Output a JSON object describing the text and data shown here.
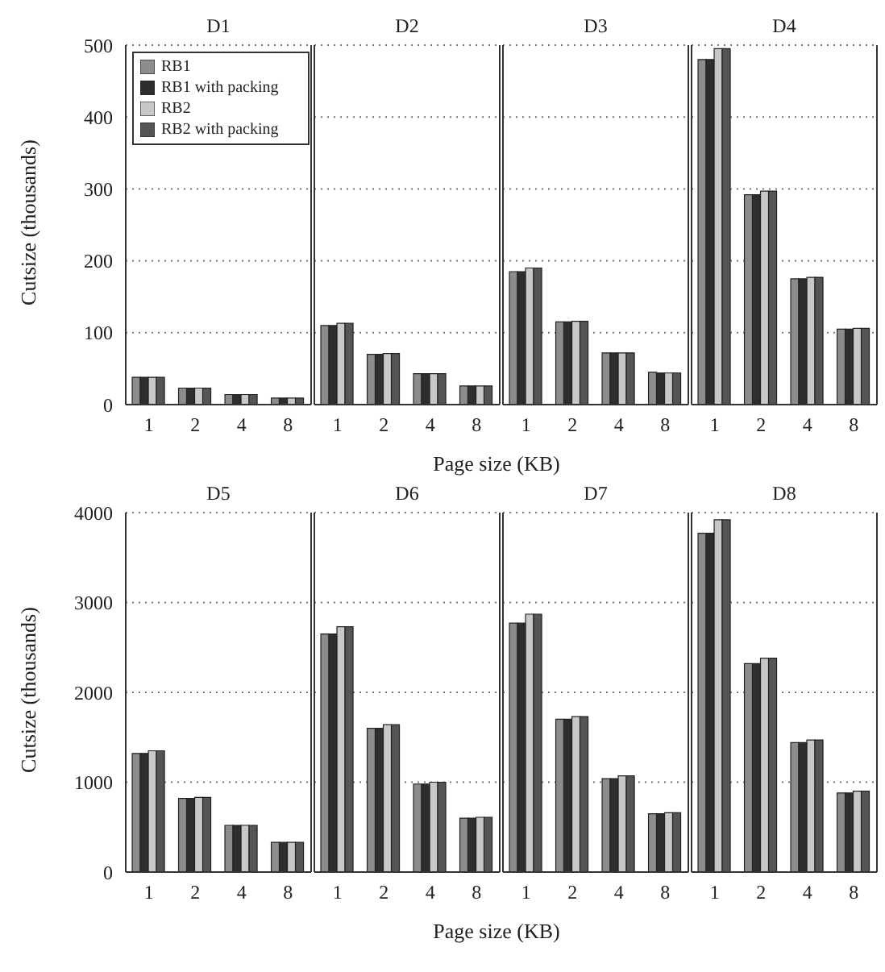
{
  "chart_data": [
    {
      "type": "bar",
      "title": "D1",
      "xlabel": "Page size (KB)",
      "ylabel": "Cutsize (thousands)",
      "categories": [
        "1",
        "2",
        "4",
        "8"
      ],
      "ylim": [
        0,
        500
      ],
      "yticks": [
        0,
        100,
        200,
        300,
        400,
        500
      ],
      "grid": "y",
      "legend": "top left",
      "series": [
        {
          "name": "RB1",
          "color": "#8c8c8c",
          "values": [
            38,
            23,
            14,
            9
          ]
        },
        {
          "name": "RB1 with packing",
          "color": "#2e2e2e",
          "values": [
            38,
            23,
            14,
            9
          ]
        },
        {
          "name": "RB2",
          "color": "#c8c8c8",
          "values": [
            38,
            23,
            14,
            9
          ]
        },
        {
          "name": "RB2 with packing",
          "color": "#555555",
          "values": [
            38,
            23,
            14,
            9
          ]
        }
      ]
    },
    {
      "type": "bar",
      "title": "D2",
      "categories": [
        "1",
        "2",
        "4",
        "8"
      ],
      "ylim": [
        0,
        500
      ],
      "yticks": [
        0,
        100,
        200,
        300,
        400,
        500
      ],
      "grid": "y",
      "tick_labels": "x",
      "series": [
        {
          "color": "#8c8c8c",
          "values": [
            110,
            70,
            43,
            26
          ]
        },
        {
          "color": "#2e2e2e",
          "values": [
            110,
            70,
            43,
            26
          ]
        },
        {
          "color": "#c8c8c8",
          "values": [
            113,
            71,
            43,
            26
          ]
        },
        {
          "color": "#555555",
          "values": [
            113,
            71,
            43,
            26
          ]
        }
      ]
    },
    {
      "type": "bar",
      "title": "D3",
      "categories": [
        "1",
        "2",
        "4",
        "8"
      ],
      "ylim": [
        0,
        500
      ],
      "yticks": [
        0,
        100,
        200,
        300,
        400,
        500
      ],
      "grid": "y",
      "tick_labels": "x",
      "series": [
        {
          "color": "#8c8c8c",
          "values": [
            185,
            115,
            72,
            45
          ]
        },
        {
          "color": "#2e2e2e",
          "values": [
            185,
            115,
            72,
            44
          ]
        },
        {
          "color": "#c8c8c8",
          "values": [
            190,
            116,
            72,
            44
          ]
        },
        {
          "color": "#555555",
          "values": [
            190,
            116,
            72,
            44
          ]
        }
      ]
    },
    {
      "type": "bar",
      "title": "D4",
      "categories": [
        "1",
        "2",
        "4",
        "8"
      ],
      "ylim": [
        0,
        500
      ],
      "yticks": [
        0,
        100,
        200,
        300,
        400,
        500
      ],
      "grid": "y",
      "tick_labels": "x",
      "series": [
        {
          "color": "#8c8c8c",
          "values": [
            480,
            292,
            175,
            105
          ]
        },
        {
          "color": "#2e2e2e",
          "values": [
            480,
            292,
            175,
            105
          ]
        },
        {
          "color": "#c8c8c8",
          "values": [
            495,
            297,
            177,
            106
          ]
        },
        {
          "color": "#555555",
          "values": [
            495,
            297,
            177,
            106
          ]
        }
      ]
    },
    {
      "type": "bar",
      "title": "D5",
      "xlabel": "Page size (KB)",
      "ylabel": "Cutsize (thousands)",
      "categories": [
        "1",
        "2",
        "4",
        "8"
      ],
      "ylim": [
        0,
        4000
      ],
      "yticks": [
        0,
        1000,
        2000,
        3000,
        4000
      ],
      "grid": "y",
      "series": [
        {
          "color": "#8c8c8c",
          "values": [
            1320,
            820,
            520,
            330
          ]
        },
        {
          "color": "#2e2e2e",
          "values": [
            1320,
            820,
            520,
            330
          ]
        },
        {
          "color": "#c8c8c8",
          "values": [
            1350,
            830,
            520,
            330
          ]
        },
        {
          "color": "#555555",
          "values": [
            1350,
            830,
            520,
            330
          ]
        }
      ]
    },
    {
      "type": "bar",
      "title": "D6",
      "categories": [
        "1",
        "2",
        "4",
        "8"
      ],
      "ylim": [
        0,
        4000
      ],
      "yticks": [
        0,
        1000,
        2000,
        3000,
        4000
      ],
      "grid": "y",
      "tick_labels": "x",
      "series": [
        {
          "color": "#8c8c8c",
          "values": [
            2650,
            1600,
            980,
            600
          ]
        },
        {
          "color": "#2e2e2e",
          "values": [
            2650,
            1600,
            980,
            600
          ]
        },
        {
          "color": "#c8c8c8",
          "values": [
            2730,
            1640,
            1000,
            610
          ]
        },
        {
          "color": "#555555",
          "values": [
            2730,
            1640,
            1000,
            610
          ]
        }
      ]
    },
    {
      "type": "bar",
      "title": "D7",
      "categories": [
        "1",
        "2",
        "4",
        "8"
      ],
      "ylim": [
        0,
        4000
      ],
      "yticks": [
        0,
        1000,
        2000,
        3000,
        4000
      ],
      "grid": "y",
      "tick_labels": "x",
      "series": [
        {
          "color": "#8c8c8c",
          "values": [
            2770,
            1700,
            1040,
            650
          ]
        },
        {
          "color": "#2e2e2e",
          "values": [
            2770,
            1700,
            1040,
            650
          ]
        },
        {
          "color": "#c8c8c8",
          "values": [
            2870,
            1730,
            1070,
            660
          ]
        },
        {
          "color": "#555555",
          "values": [
            2870,
            1730,
            1070,
            660
          ]
        }
      ]
    },
    {
      "type": "bar",
      "title": "D8",
      "categories": [
        "1",
        "2",
        "4",
        "8"
      ],
      "ylim": [
        0,
        4000
      ],
      "yticks": [
        0,
        1000,
        2000,
        3000,
        4000
      ],
      "grid": "y",
      "tick_labels": "x",
      "series": [
        {
          "color": "#8c8c8c",
          "values": [
            3770,
            2320,
            1440,
            880
          ]
        },
        {
          "color": "#2e2e2e",
          "values": [
            3770,
            2320,
            1440,
            880
          ]
        },
        {
          "color": "#c8c8c8",
          "values": [
            3920,
            2380,
            1470,
            900
          ]
        },
        {
          "color": "#555555",
          "values": [
            3920,
            2380,
            1470,
            900
          ]
        }
      ]
    }
  ]
}
